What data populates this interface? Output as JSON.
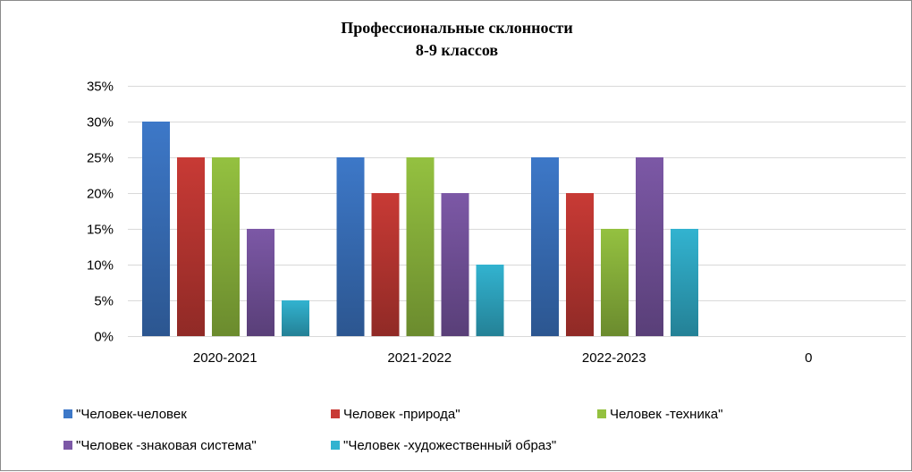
{
  "chart_data": {
    "type": "bar",
    "title": "Профессиональные склонности",
    "subtitle": "8-9 классов",
    "categories": [
      "2020-2021",
      "2021-2022",
      "2022-2023",
      "0"
    ],
    "y_tick_labels": [
      "0%",
      "5%",
      "10%",
      "15%",
      "20%",
      "25%",
      "30%",
      "35%"
    ],
    "ylim": [
      0,
      0.35
    ],
    "y_step": 0.05,
    "grid": true,
    "legend_position": "bottom",
    "series": [
      {
        "name": "\"Человек-человек",
        "color": "#3d78c8",
        "values": [
          0.3,
          0.25,
          0.25,
          null
        ]
      },
      {
        "name": "Человек -природа\"",
        "color": "#c83a35",
        "values": [
          0.25,
          0.2,
          0.2,
          null
        ]
      },
      {
        "name": "Человек -техника\"",
        "color": "#94c140",
        "values": [
          0.25,
          0.25,
          0.15,
          null
        ]
      },
      {
        "name": "\"Человек -знаковая система\"",
        "color": "#7c58a6",
        "values": [
          0.15,
          0.2,
          0.25,
          null
        ]
      },
      {
        "name": "\"Человек -художественный образ\"",
        "color": "#32b3d0",
        "values": [
          0.05,
          0.1,
          0.15,
          null
        ]
      }
    ]
  }
}
